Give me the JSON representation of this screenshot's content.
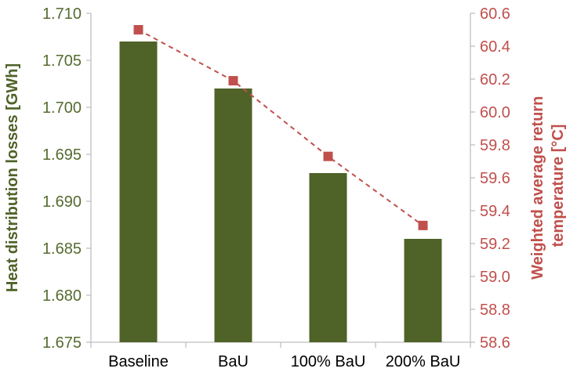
{
  "chart_data": {
    "type": "bar",
    "categories": [
      "Baseline",
      "BaU",
      "100% BaU",
      "200% BaU"
    ],
    "series": [
      {
        "kind": "bar",
        "axis": "left",
        "color": "#4f6228",
        "values": [
          1.707,
          1.702,
          1.693,
          1.686
        ]
      },
      {
        "kind": "line",
        "axis": "right",
        "color": "#c0504d",
        "style": "dashed",
        "marker": "square",
        "values": [
          60.5,
          60.19,
          59.73,
          59.31
        ]
      }
    ],
    "ylabel": "Heat distribution losses [GWh]",
    "y2label": [
      "Weighted average return",
      "temperature [°C]"
    ],
    "ylim": [
      1.675,
      1.71
    ],
    "y2lim": [
      58.6,
      60.6
    ],
    "yticks": [
      "1.675",
      "1.680",
      "1.685",
      "1.690",
      "1.695",
      "1.700",
      "1.705",
      "1.710"
    ],
    "y2ticks": [
      "58.6",
      "58.8",
      "59.0",
      "59.2",
      "59.4",
      "59.6",
      "59.8",
      "60.0",
      "60.2",
      "60.4",
      "60.6"
    ],
    "grid": false,
    "legend": "none"
  }
}
